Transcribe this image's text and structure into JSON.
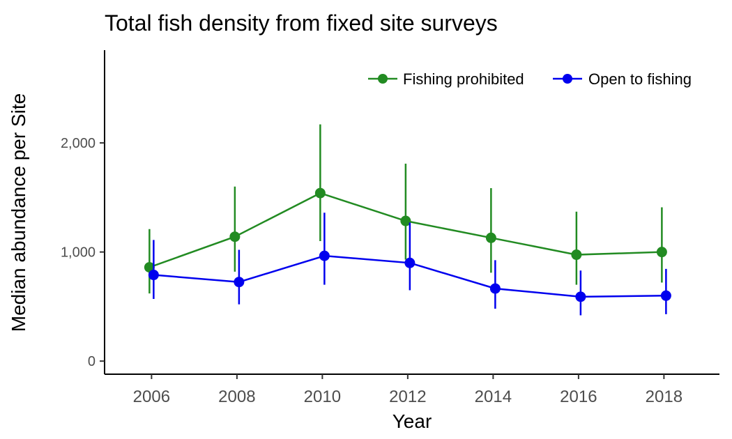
{
  "chart_data": {
    "type": "line",
    "title": "Total fish density from fixed site surveys",
    "xlabel": "Year",
    "ylabel": "Median abundance per Site",
    "x": [
      2006,
      2008,
      2010,
      2012,
      2014,
      2016,
      2018
    ],
    "xticks": [
      "2006",
      "2008",
      "2010",
      "2012",
      "2014",
      "2016",
      "2018"
    ],
    "xlim": [
      2004.9,
      2019.3
    ],
    "ylim": [
      -120,
      2850
    ],
    "yticks": [
      0,
      1000,
      2000
    ],
    "ytick_labels": [
      "0",
      "1,000",
      "2,000"
    ],
    "grid": false,
    "legend_position": "top-right",
    "series": [
      {
        "name": "Fishing prohibited",
        "color": "#228B22",
        "values": [
          860,
          1140,
          1540,
          1285,
          1130,
          975,
          1000
        ],
        "lower": [
          620,
          820,
          1100,
          930,
          810,
          700,
          720
        ],
        "upper": [
          1210,
          1600,
          2170,
          1810,
          1585,
          1370,
          1410
        ]
      },
      {
        "name": "Open to fishing",
        "color": "#0000EE",
        "values": [
          790,
          725,
          965,
          900,
          665,
          590,
          600
        ],
        "lower": [
          570,
          520,
          700,
          650,
          480,
          420,
          430
        ],
        "upper": [
          1110,
          1020,
          1360,
          1270,
          925,
          830,
          845
        ]
      }
    ]
  }
}
